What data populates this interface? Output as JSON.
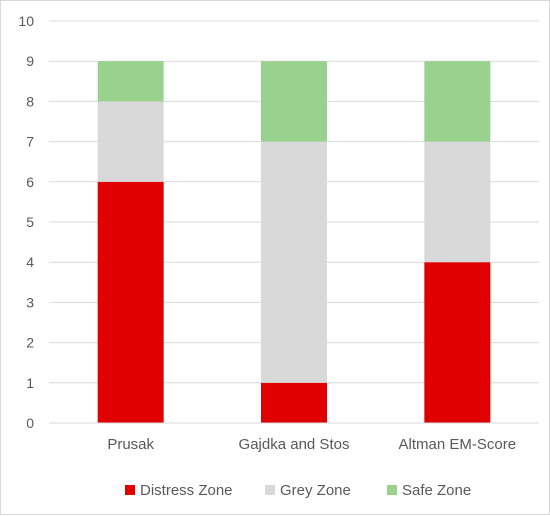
{
  "chart_data": {
    "type": "bar",
    "stacked": true,
    "categories": [
      "Prusak",
      "Gajdka and Stos",
      "Altman EM-Score"
    ],
    "series": [
      {
        "name": "Distress Zone",
        "color": "#e00000",
        "values": [
          6,
          1,
          4
        ]
      },
      {
        "name": "Grey Zone",
        "color": "#d9d9d9",
        "values": [
          2,
          6,
          3
        ]
      },
      {
        "name": "Safe Zone",
        "color": "#99d18f",
        "values": [
          1,
          2,
          2
        ]
      }
    ],
    "ylim": [
      0,
      10
    ],
    "yticks": [
      0,
      1,
      2,
      3,
      4,
      5,
      6,
      7,
      8,
      9,
      10
    ],
    "grid": true,
    "legend_position": "bottom"
  }
}
